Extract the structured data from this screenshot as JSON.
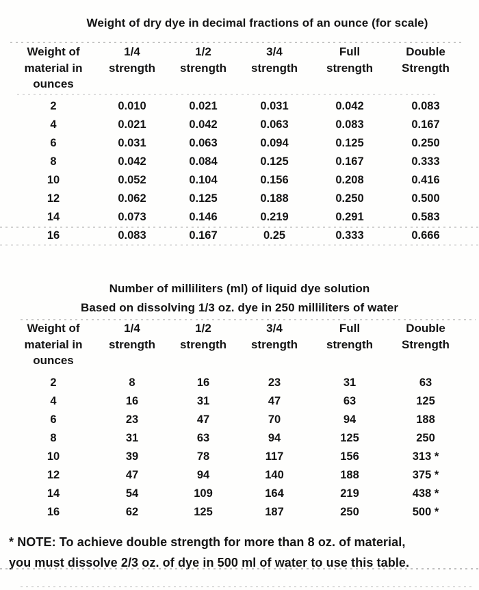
{
  "page": {
    "background": "#fefefdff",
    "ink": "#141414",
    "artifact_color": "#8d8d8d"
  },
  "table_dry": {
    "title": "Weight of dry dye in decimal fractions of an ounce (for scale)",
    "headers": [
      [
        "Weight of",
        "material in",
        "ounces"
      ],
      [
        "1/4",
        "strength"
      ],
      [
        "1/2",
        "strength"
      ],
      [
        "3/4",
        "strength"
      ],
      [
        "Full",
        "strength"
      ],
      [
        "Double",
        "Strength"
      ]
    ],
    "rows": [
      [
        "2",
        "0.010",
        "0.021",
        "0.031",
        "0.042",
        "0.083"
      ],
      [
        "4",
        "0.021",
        "0.042",
        "0.063",
        "0.083",
        "0.167"
      ],
      [
        "6",
        "0.031",
        "0.063",
        "0.094",
        "0.125",
        "0.250"
      ],
      [
        "8",
        "0.042",
        "0.084",
        "0.125",
        "0.167",
        "0.333"
      ],
      [
        "10",
        "0.052",
        "0.104",
        "0.156",
        "0.208",
        "0.416"
      ],
      [
        "12",
        "0.062",
        "0.125",
        "0.188",
        "0.250",
        "0.500"
      ],
      [
        "14",
        "0.073",
        "0.146",
        "0.219",
        "0.291",
        "0.583"
      ],
      [
        "16",
        "0.083",
        "0.167",
        "0.25",
        "0.333",
        "0.666"
      ]
    ]
  },
  "table_liquid": {
    "title": "Number of milliliters (ml) of liquid dye solution",
    "subtitle": "Based on dissolving 1/3 oz. dye in 250 milliliters of water",
    "headers": [
      [
        "Weight of",
        "material in",
        "ounces"
      ],
      [
        "1/4",
        "strength"
      ],
      [
        "1/2",
        "strength"
      ],
      [
        "3/4",
        "strength"
      ],
      [
        "Full",
        "strength"
      ],
      [
        "Double",
        "Strength"
      ]
    ],
    "rows": [
      [
        "2",
        "8",
        "16",
        "23",
        "31",
        "63"
      ],
      [
        "4",
        "16",
        "31",
        "47",
        "63",
        "125"
      ],
      [
        "6",
        "23",
        "47",
        "70",
        "94",
        "188"
      ],
      [
        "8",
        "31",
        "63",
        "94",
        "125",
        "250"
      ],
      [
        "10",
        "39",
        "78",
        "117",
        "156",
        "313 *"
      ],
      [
        "12",
        "47",
        "94",
        "140",
        "188",
        "375 *"
      ],
      [
        "14",
        "54",
        "109",
        "164",
        "219",
        "438 *"
      ],
      [
        "16",
        "62",
        "125",
        "187",
        "250",
        "500 *"
      ]
    ]
  },
  "note": {
    "line1": "* NOTE: To achieve double strength for more than 8 oz. of material,",
    "line2": "you must dissolve 2/3 oz. of dye in 500 ml of water to use this table."
  }
}
